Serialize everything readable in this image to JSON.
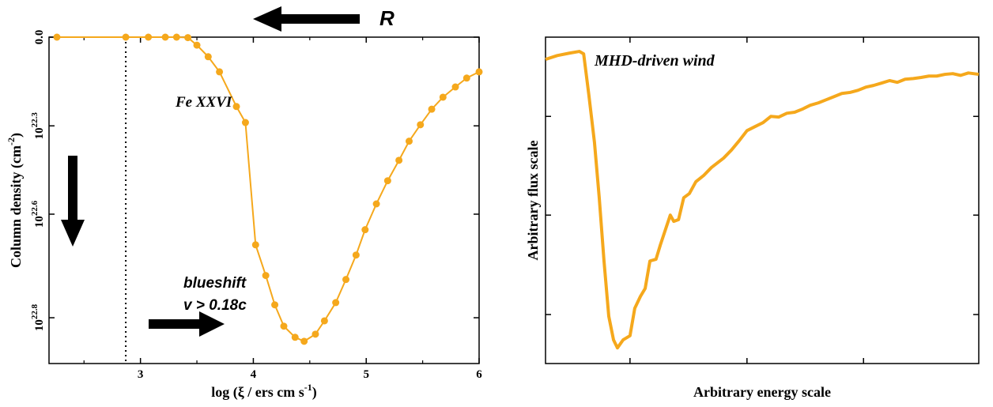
{
  "chart_data": [
    {
      "type": "line",
      "xlabel": {
        "text": "log (ξ  / ers cm s",
        "sup": "-1",
        "tail": ")"
      },
      "ylabel": {
        "text": "Column density (cm",
        "sup": "-2",
        "tail": ")"
      },
      "annotations": [
        "Fe XXVI",
        "R",
        "blueshift",
        "v > 0.18c"
      ],
      "xlim": [
        2.19,
        6.0
      ],
      "ylim": [
        0,
        7.34e+22
      ],
      "y_inverted": true,
      "xticks": [
        3,
        4,
        5,
        6
      ],
      "xminorticks": [
        2.5,
        3.5,
        4.5,
        5.5
      ],
      "yticks": [
        {
          "value": 0,
          "label": "0.0"
        },
        {
          "value": 1.995e+22,
          "label": "10",
          "exponent": "22.3"
        },
        {
          "value": 3.981e+22,
          "label": "10",
          "exponent": "22.6"
        },
        {
          "value": 6.31e+22,
          "label": "10",
          "exponent": "22.8"
        }
      ],
      "vline": 2.87,
      "series": [
        {
          "name": "Fe XXVI",
          "color": "#f5a81c",
          "x": [
            2.26,
            2.87,
            3.07,
            3.22,
            3.32,
            3.42,
            3.5,
            3.6,
            3.7,
            3.85,
            3.93,
            4.02,
            4.11,
            4.19,
            4.27,
            4.37,
            4.45,
            4.55,
            4.63,
            4.73,
            4.82,
            4.91,
            4.99,
            5.09,
            5.19,
            5.29,
            5.38,
            5.48,
            5.58,
            5.68,
            5.79,
            5.89,
            6.0
          ],
          "values": [
            0,
            0,
            0,
            0,
            0,
            1e+20,
            1.8e+21,
            4.4e+21,
            7.8e+21,
            1.56e+22,
            1.92e+22,
            4.67e+22,
            5.36e+22,
            6.02e+22,
            6.5e+22,
            6.75e+22,
            6.84e+22,
            6.68e+22,
            6.38e+22,
            5.97e+22,
            5.45e+22,
            4.9e+22,
            4.33e+22,
            3.75e+22,
            3.23e+22,
            2.77e+22,
            2.34e+22,
            1.97e+22,
            1.62e+22,
            1.35e+22,
            1.12e+22,
            9.2e+21,
            7.8e+21
          ]
        }
      ]
    },
    {
      "type": "line",
      "xlabel": {
        "text": "Arbitrary energy scale"
      },
      "ylabel": {
        "text": "Arbitrary flux scale"
      },
      "annotations": [
        "MHD-driven wind"
      ],
      "xlim": [
        0,
        100
      ],
      "ylim": [
        0,
        93.9
      ],
      "xticks": [
        19.5,
        46.5,
        73.4
      ],
      "yticks": [
        14.1,
        42.7,
        71.1
      ],
      "series": [
        {
          "name": "MHD-driven wind",
          "color": "#f5a81c",
          "x": [
            0,
            2.7,
            5.5,
            7.8,
            8.8,
            10.0,
            11.3,
            12.4,
            13.5,
            14.6,
            15.7,
            16.6,
            17.9,
            19.5,
            20.6,
            21.9,
            23.0,
            24.1,
            25.5,
            26.5,
            27.7,
            28.8,
            29.6,
            30.7,
            31.9,
            33.2,
            34.7,
            36.5,
            38.3,
            41.1,
            42.9,
            44.7,
            46.5,
            48.4,
            50.2,
            52.0,
            53.8,
            55.7,
            57.5,
            59.3,
            61.1,
            63.0,
            64.8,
            66.6,
            68.4,
            70.3,
            72.1,
            73.9,
            75.7,
            77.6,
            79.4,
            81.2,
            83.0,
            84.9,
            86.7,
            88.5,
            90.3,
            92.2,
            94.0,
            95.8,
            97.6,
            100
          ],
          "values": [
            87.5,
            88.6,
            89.3,
            89.8,
            89.1,
            77.3,
            63.6,
            47.7,
            29.5,
            13.6,
            6.8,
            4.5,
            6.8,
            8.0,
            15.9,
            19.3,
            21.6,
            29.5,
            30.0,
            34.1,
            38.6,
            42.7,
            40.9,
            41.4,
            47.7,
            48.9,
            52.3,
            54.1,
            56.4,
            59.1,
            61.4,
            64.1,
            67.0,
            68.2,
            69.3,
            71.1,
            70.9,
            72.0,
            72.3,
            73.2,
            74.3,
            75.0,
            75.9,
            76.8,
            77.7,
            78.0,
            78.6,
            79.5,
            80.0,
            80.7,
            81.4,
            80.9,
            81.8,
            82.0,
            82.3,
            82.7,
            82.7,
            83.2,
            83.4,
            82.9,
            83.6,
            83.2
          ]
        }
      ]
    }
  ]
}
